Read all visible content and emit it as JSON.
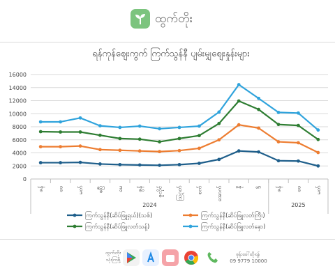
{
  "header": {
    "brand": "ထွက်တိုး"
  },
  "chart_data": {
    "type": "line",
    "title": "ရန်ကုန်စျေးကွက် ကြက်သွန်နီ ပျမ်းမျှစျေးနှုန်းများ",
    "categories": [
      "ဇန်",
      "ဖေ",
      "မတ်",
      "ဧပြီ",
      "မေ",
      "ဇွန်",
      "ဇူလိုင်",
      "သြဂုတ်",
      "စက်",
      "အောက်",
      "နို",
      "ဒီ",
      "ဇန်",
      "ဖေ",
      "မတ်"
    ],
    "year_groups": [
      {
        "label": "2024",
        "span": 12
      },
      {
        "label": "2025",
        "span": 3
      }
    ],
    "ylim": [
      0,
      16000
    ],
    "yticks": [
      "0",
      "2000",
      "4000",
      "6000",
      "8000",
      "10000",
      "12000",
      "14000",
      "16000"
    ],
    "grid": true,
    "legend_position": "bottom",
    "series": [
      {
        "name": "ကြက်သွန်နီ(ဆိပ်ဖြူရှယ်)(သစ်)",
        "color": "#1f5f8b",
        "values": [
          2500,
          2500,
          2550,
          2300,
          2200,
          2150,
          2100,
          2200,
          2400,
          3000,
          4300,
          4150,
          2800,
          2750,
          2000
        ]
      },
      {
        "name": "ကြက်သွန်နီ(ဆိပ်ဖြူလတ်ကြီး)",
        "color": "#ed7d31",
        "values": [
          4950,
          4950,
          5050,
          4500,
          4400,
          4300,
          4200,
          4350,
          4700,
          6000,
          8300,
          7800,
          5700,
          5550,
          4050
        ]
      },
      {
        "name": "ကြက်သွန်နီ(ဆိပ်ဖြူလတ်သန့်)",
        "color": "#2e7d32",
        "values": [
          7250,
          7200,
          7200,
          6700,
          6200,
          6100,
          5700,
          6200,
          6650,
          8500,
          11950,
          10650,
          8350,
          8200,
          6050
        ]
      },
      {
        "name": "ကြက်သွန်နီ(ဆိပ်ဖြူလတ်နှော)",
        "color": "#2fa3dc",
        "values": [
          8750,
          8750,
          9350,
          8150,
          7900,
          8100,
          7700,
          7900,
          8100,
          10250,
          14450,
          12350,
          10200,
          10100,
          7500
        ]
      }
    ]
  },
  "footer": {
    "left_label": "ထွက်တိုး\nသုံးကြစို့",
    "right_label": "ဖုန်းခေါ်ဆိုရန်",
    "phone": "09 9779 10000"
  }
}
